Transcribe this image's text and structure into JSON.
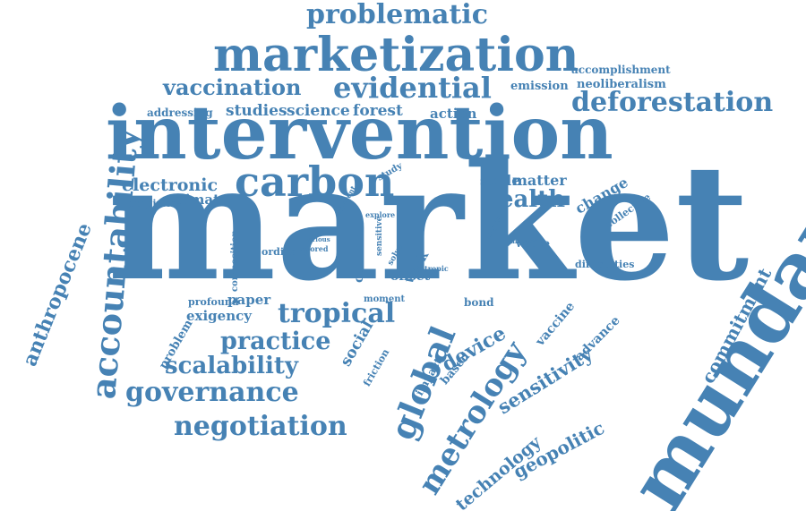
{
  "word_color": "#4682b4",
  "words": [
    "market",
    "intervention",
    "mundane",
    "marketization",
    "carbon",
    "accountability",
    "problematic",
    "evidential",
    "vaccination",
    "deforestation",
    "metrology",
    "global",
    "tropical",
    "governance",
    "negotiation",
    "practice",
    "scalability",
    "health",
    "commitment",
    "anthropocene",
    "geopolitic",
    "sensitivity",
    "device",
    "technology",
    "electronic",
    "forest",
    "science",
    "studies",
    "action",
    "climate",
    "social",
    "exigency",
    "paper",
    "change",
    "matter",
    "scale",
    "emission",
    "neoliberalism",
    "accomplishment",
    "addressing",
    "empirical",
    "ordinary",
    "problem",
    "profound",
    "waste",
    "difficulties",
    "offset",
    "vaccine",
    "advance",
    "based",
    "impact",
    "friction",
    "collective",
    "bond",
    "moment",
    "concern",
    "work",
    "composition",
    "study",
    "stored",
    "various",
    "division",
    "sensitive",
    "solve",
    "explore",
    "tropic",
    "inquiry",
    "different"
  ]
}
